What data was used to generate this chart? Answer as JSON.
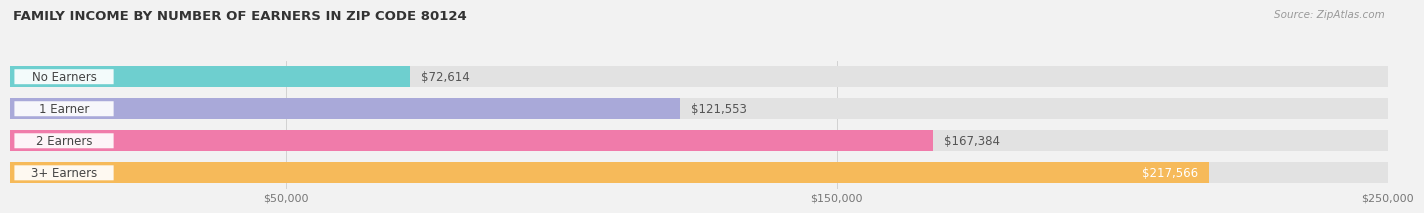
{
  "title": "FAMILY INCOME BY NUMBER OF EARNERS IN ZIP CODE 80124",
  "source": "Source: ZipAtlas.com",
  "categories": [
    "No Earners",
    "1 Earner",
    "2 Earners",
    "3+ Earners"
  ],
  "values": [
    72614,
    121553,
    167384,
    217566
  ],
  "labels": [
    "$72,614",
    "$121,553",
    "$167,384",
    "$217,566"
  ],
  "colors": [
    "#6ecfcf",
    "#a9a9d9",
    "#f07baa",
    "#f6ba5a"
  ],
  "xlim": [
    0,
    250000
  ],
  "xticks": [
    50000,
    150000,
    250000
  ],
  "xtick_labels": [
    "$50,000",
    "$150,000",
    "$250,000"
  ],
  "bar_height": 0.65,
  "background_color": "#f2f2f2",
  "bar_bg_color": "#e2e2e2",
  "title_fontsize": 9.5,
  "label_fontsize": 8.5,
  "value_fontsize": 8.5,
  "tick_fontsize": 8,
  "source_fontsize": 7.5
}
